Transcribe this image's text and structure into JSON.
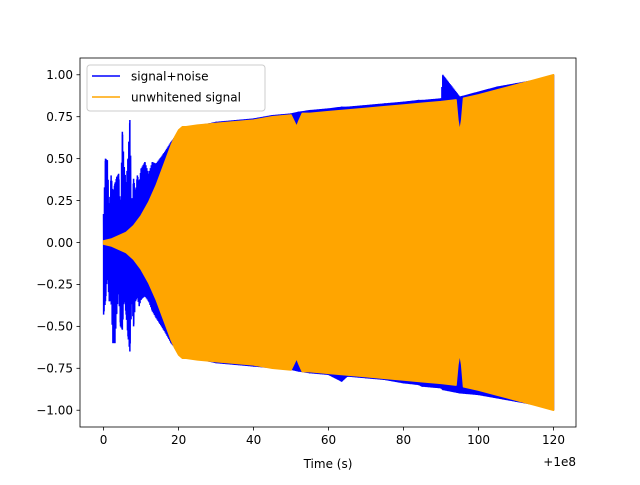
{
  "chart_data": {
    "type": "line",
    "title": "",
    "xlabel": "Time (s)",
    "ylabel": "",
    "x_offset_label": "+1e8",
    "x_offset": 100000000,
    "xlim": [
      -6.3,
      126.0
    ],
    "ylim": [
      -1.1,
      1.1
    ],
    "x_ticks": [
      0,
      20,
      40,
      60,
      80,
      100,
      120
    ],
    "x_tick_labels": [
      "0",
      "20",
      "40",
      "60",
      "80",
      "100",
      "120"
    ],
    "y_ticks": [
      -1.0,
      -0.75,
      -0.5,
      -0.25,
      0.0,
      0.25,
      0.5,
      0.75,
      1.0
    ],
    "y_tick_labels": [
      "−1.00",
      "−0.75",
      "−0.50",
      "−0.25",
      "0.00",
      "0.25",
      "0.50",
      "0.75",
      "1.00"
    ],
    "grid": false,
    "legend_position": "top-left",
    "series": [
      {
        "name": "signal+noise",
        "color": "#0000ff",
        "x": [
          0,
          0.5,
          1,
          1.5,
          2,
          2.5,
          3,
          3.5,
          4,
          4.5,
          5,
          5.5,
          6,
          6.5,
          7,
          7.5,
          8,
          8.5,
          9,
          9.5,
          10,
          11,
          12,
          13,
          14,
          16,
          18,
          20,
          25,
          28,
          30,
          35,
          40,
          45,
          50,
          52,
          55,
          60,
          63.5,
          65,
          70,
          75,
          80,
          84,
          85,
          90,
          90.5,
          95,
          100,
          105,
          110,
          115,
          120
        ],
        "y_upper": [
          0.17,
          0.5,
          0.49,
          0.2,
          0.4,
          0.3,
          0.35,
          0.39,
          0.41,
          0.2,
          0.66,
          0.45,
          0.36,
          0.5,
          0.73,
          0.2,
          0.38,
          0.3,
          0.4,
          0.36,
          0.44,
          0.48,
          0.41,
          0.48,
          0.47,
          0.53,
          0.6,
          0.66,
          0.7,
          0.71,
          0.72,
          0.73,
          0.74,
          0.76,
          0.77,
          0.78,
          0.79,
          0.8,
          0.81,
          0.81,
          0.82,
          0.83,
          0.84,
          0.85,
          0.85,
          0.86,
          1.0,
          0.87,
          0.9,
          0.93,
          0.95,
          0.97,
          1.0
        ],
        "y_lower": [
          -0.43,
          -0.35,
          -0.2,
          -0.35,
          -0.35,
          -0.6,
          -0.6,
          -0.42,
          -0.3,
          -0.5,
          -0.52,
          -0.33,
          -0.43,
          -0.56,
          -0.65,
          -0.35,
          -0.5,
          -0.35,
          -0.33,
          -0.38,
          -0.34,
          -0.32,
          -0.35,
          -0.41,
          -0.45,
          -0.52,
          -0.6,
          -0.66,
          -0.69,
          -0.71,
          -0.72,
          -0.73,
          -0.74,
          -0.75,
          -0.76,
          -0.77,
          -0.78,
          -0.79,
          -0.83,
          -0.8,
          -0.81,
          -0.82,
          -0.84,
          -0.85,
          -0.86,
          -0.87,
          -0.88,
          -0.9,
          -0.91,
          -0.93,
          -0.95,
          -0.97,
          -1.0
        ]
      },
      {
        "name": "unwhitened signal",
        "color": "#ffa500",
        "x": [
          0,
          2,
          4,
          6,
          8,
          10,
          12,
          14,
          16,
          18,
          19,
          20,
          21,
          22,
          25,
          30,
          35,
          40,
          45,
          50,
          51.5,
          52,
          53,
          55,
          60,
          65,
          70,
          75,
          80,
          85,
          90,
          94,
          94.5,
          95,
          95.5,
          96,
          100,
          105,
          110,
          115,
          120
        ],
        "amplitude": [
          0.01,
          0.02,
          0.04,
          0.06,
          0.1,
          0.16,
          0.24,
          0.34,
          0.46,
          0.58,
          0.63,
          0.67,
          0.69,
          0.69,
          0.7,
          0.71,
          0.72,
          0.73,
          0.75,
          0.76,
          0.69,
          0.72,
          0.77,
          0.77,
          0.78,
          0.79,
          0.8,
          0.81,
          0.82,
          0.83,
          0.84,
          0.85,
          0.73,
          0.66,
          0.73,
          0.86,
          0.88,
          0.91,
          0.94,
          0.97,
          1.0
        ]
      }
    ]
  }
}
